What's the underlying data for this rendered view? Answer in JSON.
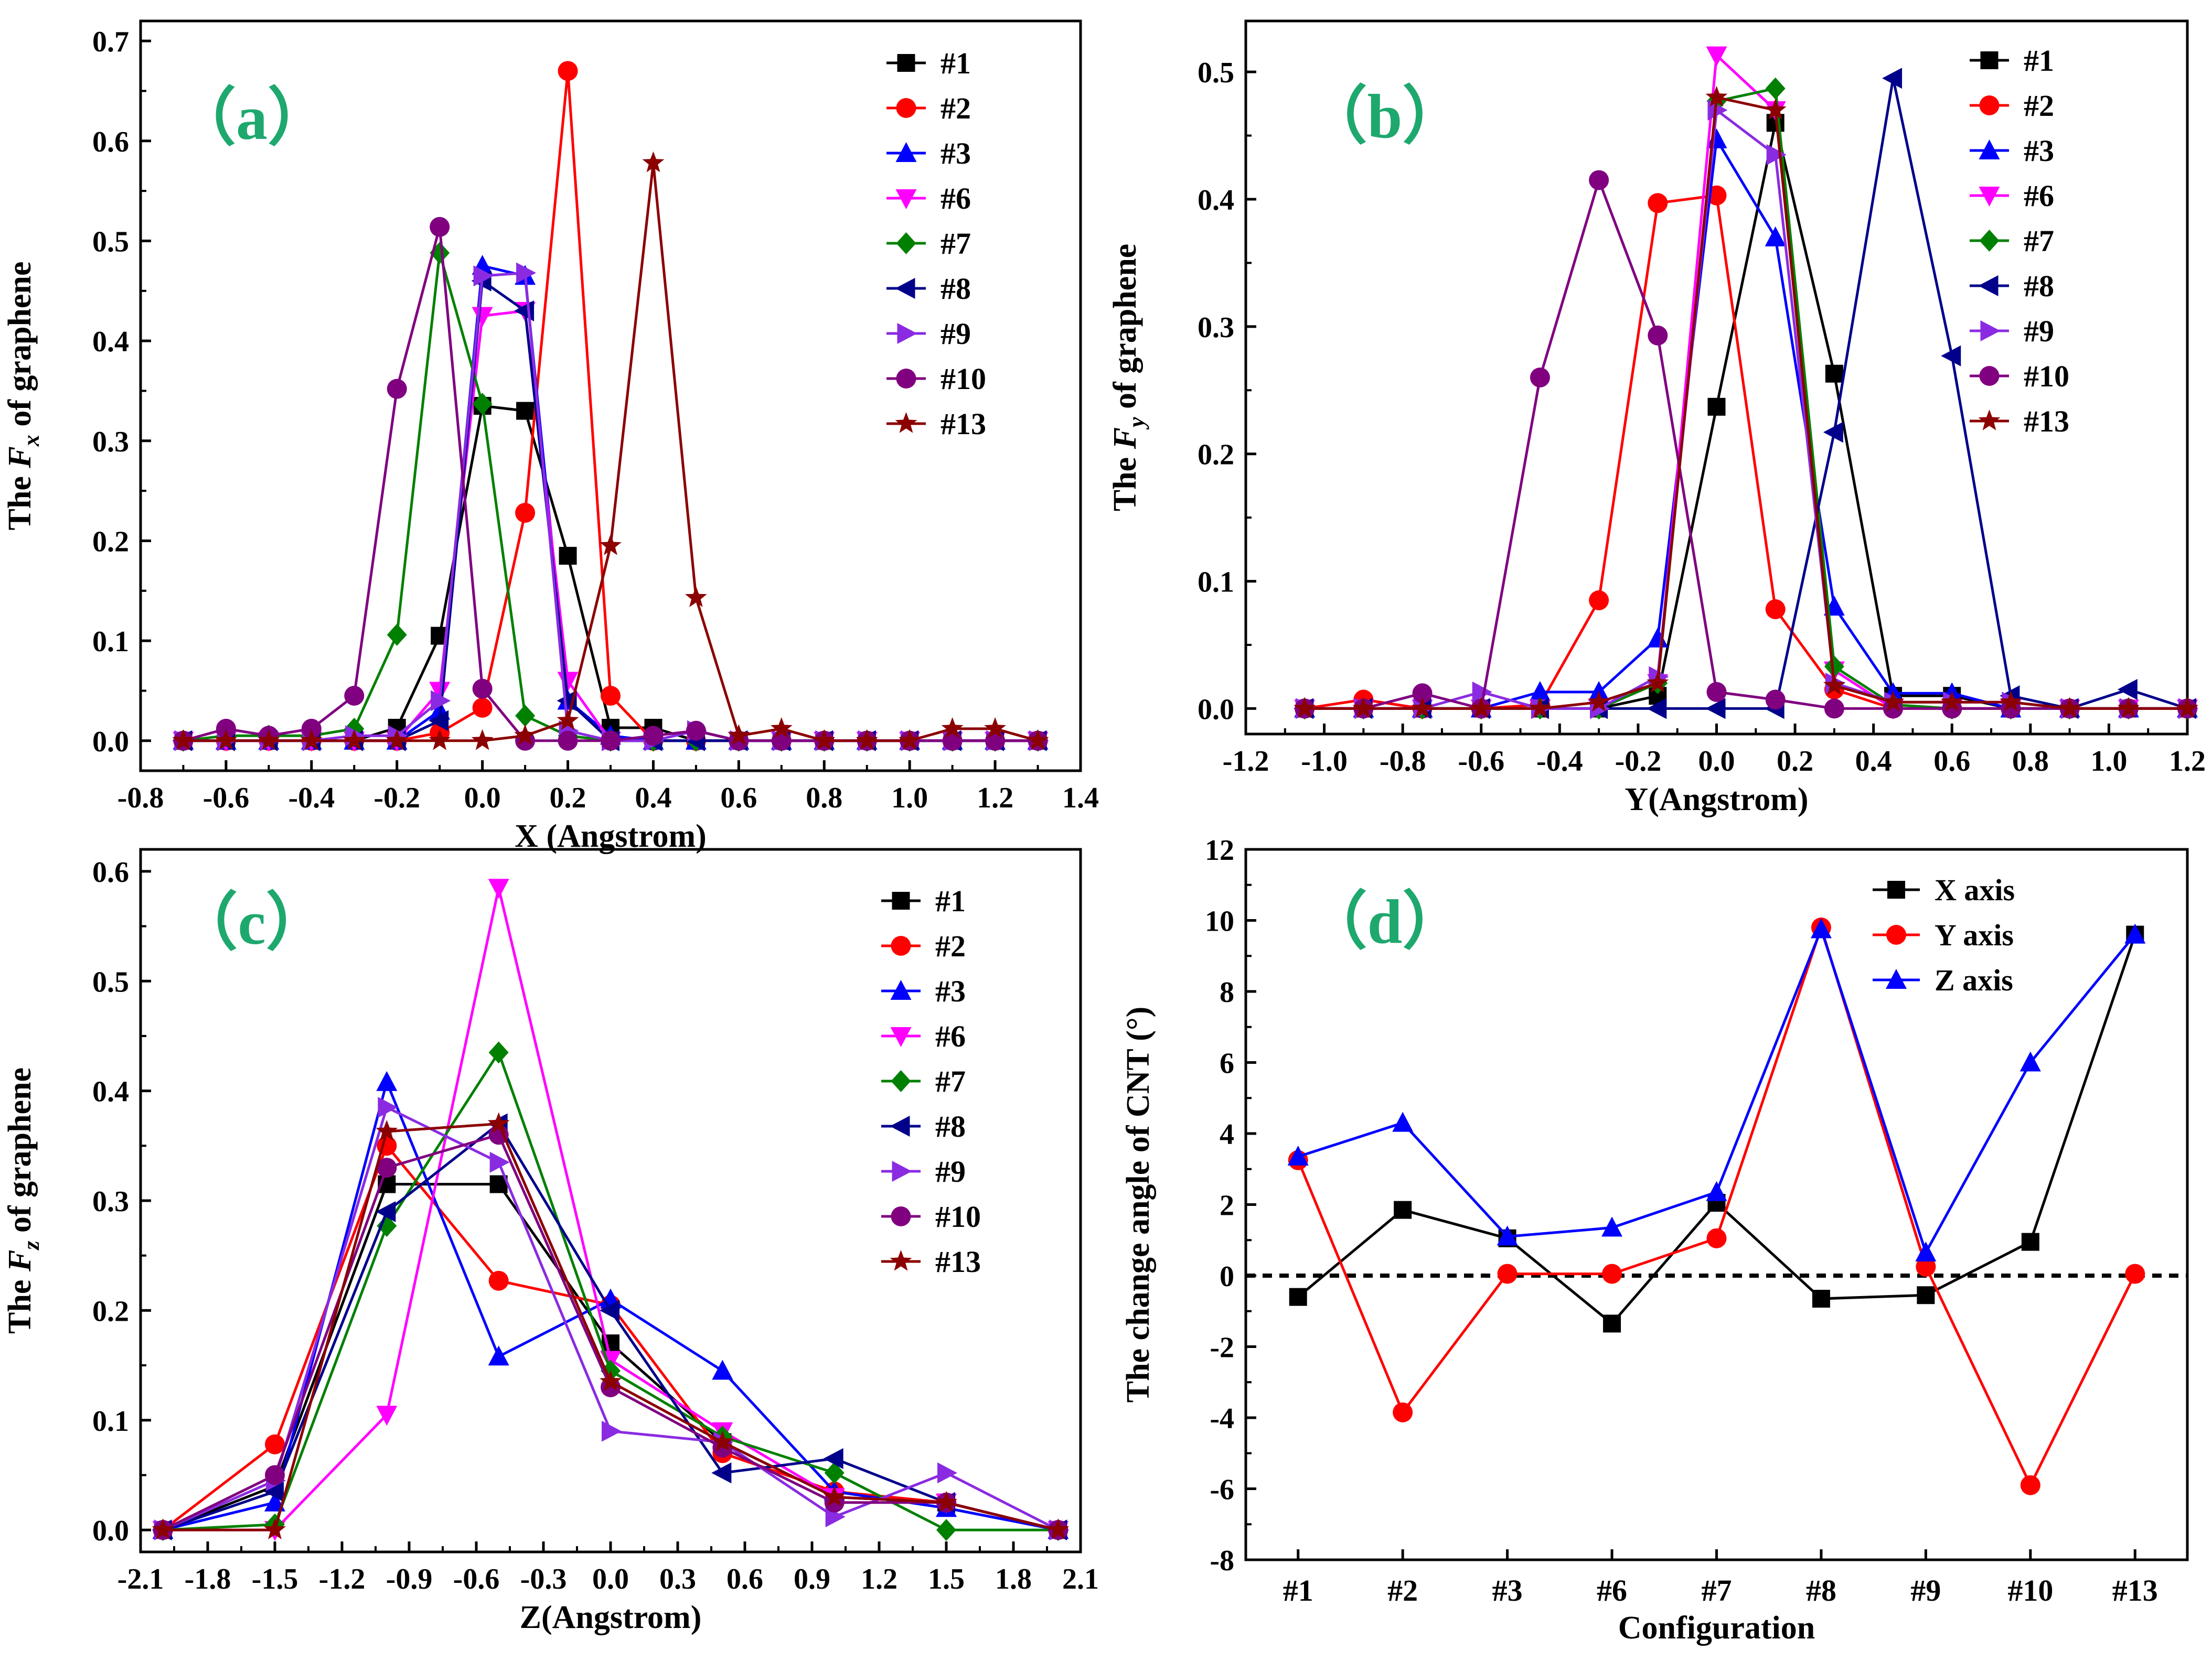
{
  "chart_data": [
    {
      "panel": "a",
      "type": "line",
      "panel_label": "（a）",
      "ylabel_parts": [
        "The ",
        "F",
        "x",
        " of graphene"
      ],
      "xlabel": "X (Angstrom)",
      "xlim": [
        -0.8,
        1.4
      ],
      "ylim": [
        -0.03,
        0.72
      ],
      "xticks": [
        -0.8,
        -0.6,
        -0.4,
        -0.2,
        0.0,
        0.2,
        0.4,
        0.6,
        0.8,
        1.0,
        1.2,
        1.4
      ],
      "xtick_labels": [
        "-0.8",
        "-0.6",
        "-0.4",
        "-0.2",
        "0.0",
        "0.2",
        "0.4",
        "0.6",
        "0.8",
        "1.0",
        "1.2",
        "1.4"
      ],
      "yticks": [
        0.0,
        0.1,
        0.2,
        0.3,
        0.4,
        0.5,
        0.6,
        0.7
      ],
      "ytick_labels": [
        "0.0",
        "0.1",
        "0.2",
        "0.3",
        "0.4",
        "0.5",
        "0.6",
        "0.7"
      ],
      "x": [
        -0.7,
        -0.6,
        -0.5,
        -0.4,
        -0.3,
        -0.2,
        -0.1,
        0.0,
        0.1,
        0.2,
        0.3,
        0.4,
        0.5,
        0.6,
        0.7,
        0.8,
        0.9,
        1.0,
        1.1,
        1.2,
        1.3
      ],
      "series": [
        {
          "name": "#1",
          "color": "#000000",
          "marker": "square",
          "values": [
            0,
            0,
            0,
            0,
            0,
            0.013,
            0.105,
            0.335,
            0.33,
            0.185,
            0.013,
            0.013,
            0,
            0,
            0,
            0,
            0,
            0,
            0,
            0,
            0
          ]
        },
        {
          "name": "#2",
          "color": "#ff0000",
          "marker": "circle",
          "values": [
            0,
            0,
            0,
            0,
            0,
            0,
            0.008,
            0.033,
            0.228,
            0.67,
            0.045,
            0,
            0,
            0,
            0,
            0,
            0,
            0,
            0,
            0,
            0
          ]
        },
        {
          "name": "#3",
          "color": "#0000ff",
          "marker": "triangle-up",
          "values": [
            0,
            0,
            0,
            0,
            0,
            0,
            0.03,
            0.475,
            0.465,
            0.04,
            0.005,
            0,
            0,
            0,
            0,
            0,
            0,
            0,
            0,
            0,
            0
          ]
        },
        {
          "name": "#6",
          "color": "#ff00ff",
          "marker": "triangle-down",
          "values": [
            0,
            0,
            0,
            0,
            0,
            0,
            0.05,
            0.425,
            0.43,
            0.06,
            0,
            0,
            0,
            0,
            0,
            0,
            0,
            0,
            0,
            0,
            0
          ]
        },
        {
          "name": "#7",
          "color": "#008000",
          "marker": "diamond",
          "values": [
            0,
            0.005,
            0.005,
            0.005,
            0.012,
            0.106,
            0.488,
            0.337,
            0.025,
            0.005,
            0,
            0,
            0,
            0,
            0,
            0,
            0,
            0,
            0,
            0,
            0
          ]
        },
        {
          "name": "#8",
          "color": "#00008b",
          "marker": "triangle-left",
          "values": [
            0,
            0,
            0,
            0,
            0,
            0,
            0.02,
            0.46,
            0.43,
            0.04,
            0,
            0,
            0,
            0,
            0,
            0,
            0,
            0,
            0,
            0,
            0
          ]
        },
        {
          "name": "#9",
          "color": "#8a2be2",
          "marker": "triangle-right",
          "values": [
            0,
            0,
            0,
            0,
            0.005,
            0.005,
            0.04,
            0.465,
            0.468,
            0.01,
            0,
            0,
            0.01,
            0,
            0,
            0,
            0,
            0,
            0,
            0,
            0
          ]
        },
        {
          "name": "#10",
          "color": "#800080",
          "marker": "circle",
          "values": [
            0,
            0.012,
            0.005,
            0.012,
            0.045,
            0.352,
            0.514,
            0.052,
            0,
            0,
            0,
            0.005,
            0.01,
            0,
            0,
            0,
            0,
            0,
            0,
            0,
            0
          ]
        },
        {
          "name": "#13",
          "color": "#8b0000",
          "marker": "star",
          "values": [
            0,
            0,
            0,
            0,
            0,
            0,
            0,
            0,
            0.005,
            0.02,
            0.195,
            0.578,
            0.143,
            0.005,
            0.012,
            0,
            0,
            0,
            0.012,
            0.012,
            0
          ]
        }
      ]
    },
    {
      "panel": "b",
      "type": "line",
      "panel_label": "（b）",
      "ylabel_parts": [
        "The ",
        "F",
        "y",
        " of graphene"
      ],
      "xlabel": "Y(Angstrom)",
      "xlim": [
        -1.2,
        1.2
      ],
      "ylim": [
        -0.02,
        0.54
      ],
      "xticks": [
        -1.2,
        -1.0,
        -0.8,
        -0.6,
        -0.4,
        -0.2,
        0.0,
        0.2,
        0.4,
        0.6,
        0.8,
        1.0,
        1.2
      ],
      "xtick_labels": [
        "-1.2",
        "-1.0",
        "-0.8",
        "-0.6",
        "-0.4",
        "-0.2",
        "0.0",
        "0.2",
        "0.4",
        "0.6",
        "0.8",
        "1.0",
        "1.2"
      ],
      "yticks": [
        0.0,
        0.1,
        0.2,
        0.3,
        0.4,
        0.5
      ],
      "ytick_labels": [
        "0.0",
        "0.1",
        "0.2",
        "0.3",
        "0.4",
        "0.5"
      ],
      "x": [
        -1.05,
        -0.9,
        -0.75,
        -0.6,
        -0.45,
        -0.3,
        -0.15,
        0.0,
        0.15,
        0.3,
        0.45,
        0.6,
        0.75,
        0.9,
        1.05,
        1.2
      ],
      "series": [
        {
          "name": "#1",
          "color": "#000000",
          "marker": "square",
          "values": [
            0,
            0,
            0,
            0,
            0,
            0,
            0.01,
            0.237,
            0.46,
            0.263,
            0.01,
            0.01,
            0,
            0,
            0,
            0
          ]
        },
        {
          "name": "#2",
          "color": "#ff0000",
          "marker": "circle",
          "values": [
            0,
            0.007,
            0,
            0,
            0.003,
            0.085,
            0.397,
            0.403,
            0.078,
            0.015,
            0,
            0,
            0,
            0,
            0,
            0
          ]
        },
        {
          "name": "#3",
          "color": "#0000ff",
          "marker": "triangle-up",
          "values": [
            0,
            0,
            0,
            0,
            0.013,
            0.013,
            0.055,
            0.447,
            0.37,
            0.08,
            0.012,
            0.012,
            0,
            0,
            0,
            0
          ]
        },
        {
          "name": "#6",
          "color": "#ff00ff",
          "marker": "triangle-down",
          "values": [
            0,
            0,
            0,
            0,
            0,
            0,
            0.02,
            0.513,
            0.47,
            0.03,
            0,
            0,
            0,
            0,
            0,
            0
          ]
        },
        {
          "name": "#7",
          "color": "#008000",
          "marker": "diamond",
          "values": [
            0,
            0,
            0,
            0,
            0,
            0,
            0.02,
            0.477,
            0.487,
            0.033,
            0.003,
            0,
            0,
            0,
            0,
            0
          ]
        },
        {
          "name": "#8",
          "color": "#00008b",
          "marker": "triangle-left",
          "values": [
            0,
            0,
            0,
            0,
            0,
            0,
            0,
            0,
            0,
            0.217,
            0.495,
            0.277,
            0.01,
            0,
            0.015,
            0
          ]
        },
        {
          "name": "#9",
          "color": "#8a2be2",
          "marker": "triangle-right",
          "values": [
            0,
            0,
            0,
            0.013,
            0,
            0,
            0.025,
            0.47,
            0.435,
            0.02,
            0.005,
            0.005,
            0.005,
            0,
            0,
            0
          ]
        },
        {
          "name": "#10",
          "color": "#800080",
          "marker": "circle",
          "values": [
            0,
            0,
            0.012,
            0,
            0.26,
            0.415,
            0.293,
            0.013,
            0.007,
            0,
            0,
            0,
            0,
            0,
            0,
            0
          ]
        },
        {
          "name": "#13",
          "color": "#8b0000",
          "marker": "star",
          "values": [
            0,
            0,
            0,
            0,
            0,
            0.005,
            0.02,
            0.48,
            0.47,
            0.018,
            0.005,
            0.005,
            0.005,
            0,
            0,
            0
          ]
        }
      ]
    },
    {
      "panel": "c",
      "type": "line",
      "panel_label": "（c）",
      "ylabel_parts": [
        "The ",
        "F",
        "z",
        " of graphene"
      ],
      "xlabel": "Z(Angstrom)",
      "xlim": [
        -2.1,
        2.1
      ],
      "ylim": [
        -0.02,
        0.62
      ],
      "xticks": [
        -2.1,
        -1.8,
        -1.5,
        -1.2,
        -0.9,
        -0.6,
        -0.3,
        0.0,
        0.3,
        0.6,
        0.9,
        1.2,
        1.5,
        1.8,
        2.1
      ],
      "xtick_labels": [
        "-2.1",
        "-1.8",
        "-1.5",
        "-1.2",
        "-0.9",
        "-0.6",
        "-0.3",
        "0.0",
        "0.3",
        "0.6",
        "0.9",
        "1.2",
        "1.5",
        "1.8",
        "2.1"
      ],
      "yticks": [
        0.0,
        0.1,
        0.2,
        0.3,
        0.4,
        0.5,
        0.6
      ],
      "ytick_labels": [
        "0.0",
        "0.1",
        "0.2",
        "0.3",
        "0.4",
        "0.5",
        "0.6"
      ],
      "x": [
        -2.0,
        -1.5,
        -1.0,
        -0.5,
        0.0,
        0.5,
        1.0,
        1.5,
        2.0
      ],
      "series": [
        {
          "name": "#1",
          "color": "#000000",
          "marker": "square",
          "values": [
            0,
            0.04,
            0.315,
            0.315,
            0.17,
            0.08,
            0.03,
            0.025,
            0
          ]
        },
        {
          "name": "#2",
          "color": "#ff0000",
          "marker": "circle",
          "values": [
            0,
            0.078,
            0.35,
            0.227,
            0.205,
            0.07,
            0.035,
            0.025,
            0
          ]
        },
        {
          "name": "#3",
          "color": "#0000ff",
          "marker": "triangle-up",
          "values": [
            0,
            0.025,
            0.408,
            0.158,
            0.21,
            0.145,
            0.035,
            0.02,
            0
          ]
        },
        {
          "name": "#6",
          "color": "#ff00ff",
          "marker": "triangle-down",
          "values": [
            0,
            0,
            0.105,
            0.585,
            0.155,
            0.09,
            0.03,
            0.025,
            0
          ]
        },
        {
          "name": "#7",
          "color": "#008000",
          "marker": "diamond",
          "values": [
            0,
            0.005,
            0.277,
            0.435,
            0.145,
            0.085,
            0.052,
            0,
            0
          ]
        },
        {
          "name": "#8",
          "color": "#00008b",
          "marker": "triangle-left",
          "values": [
            0,
            0.035,
            0.29,
            0.37,
            0.2,
            0.052,
            0.065,
            0.025,
            0
          ]
        },
        {
          "name": "#9",
          "color": "#8a2be2",
          "marker": "triangle-right",
          "values": [
            0,
            0.045,
            0.385,
            0.335,
            0.09,
            0.08,
            0.012,
            0.052,
            0
          ]
        },
        {
          "name": "#10",
          "color": "#800080",
          "marker": "circle",
          "values": [
            0,
            0.05,
            0.33,
            0.36,
            0.13,
            0.075,
            0.025,
            0.025,
            0
          ]
        },
        {
          "name": "#13",
          "color": "#8b0000",
          "marker": "star",
          "values": [
            0,
            0,
            0.363,
            0.37,
            0.135,
            0.08,
            0.03,
            0.025,
            0
          ]
        }
      ]
    },
    {
      "panel": "d",
      "type": "line",
      "panel_label": "（d）",
      "ylabel_parts": [
        "The change angle of  CNT (°)"
      ],
      "xlabel": "Configuration",
      "categories": [
        "#1",
        "#2",
        "#3",
        "#6",
        "#7",
        "#8",
        "#9",
        "#10",
        "#13"
      ],
      "xlim": [
        -0.5,
        8.5
      ],
      "ylim": [
        -8,
        12
      ],
      "yticks": [
        -8,
        -6,
        -4,
        -2,
        0,
        2,
        4,
        6,
        8,
        10,
        12
      ],
      "ytick_labels": [
        "-8",
        "-6",
        "-4",
        "-2",
        "0",
        "2",
        "4",
        "6",
        "8",
        "10",
        "12"
      ],
      "reference_line": {
        "y": 0,
        "style": "dashed"
      },
      "series": [
        {
          "name": "X axis",
          "color": "#000000",
          "marker": "square",
          "values": [
            -0.6,
            1.85,
            1.05,
            -1.35,
            2.05,
            -0.65,
            -0.55,
            0.95,
            9.6
          ]
        },
        {
          "name": "Y axis",
          "color": "#ff0000",
          "marker": "circle",
          "values": [
            3.25,
            -3.85,
            0.05,
            0.05,
            1.05,
            9.8,
            0.25,
            -5.9,
            0.05
          ]
        },
        {
          "name": "Z axis",
          "color": "#0000ff",
          "marker": "triangle-up",
          "values": [
            3.35,
            4.3,
            1.1,
            1.35,
            2.35,
            9.75,
            0.65,
            6.0,
            9.6
          ]
        }
      ]
    }
  ]
}
